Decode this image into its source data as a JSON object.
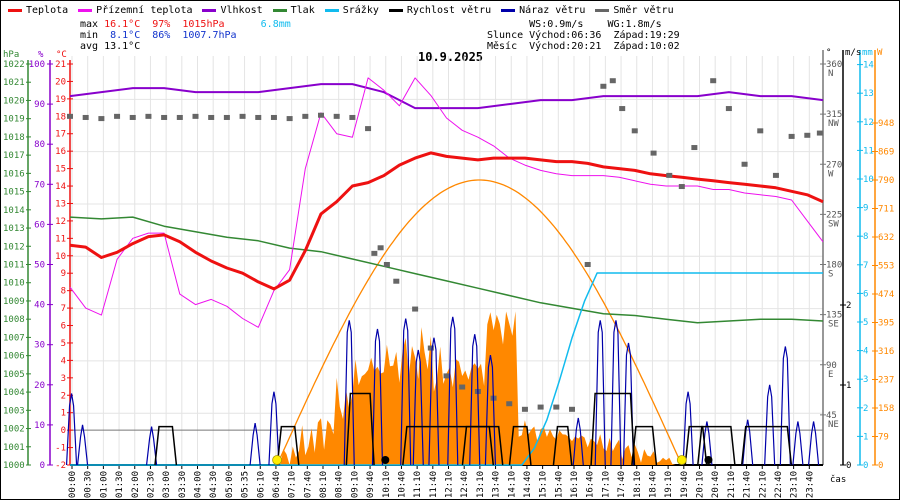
{
  "legend": [
    {
      "label": "Teplota",
      "color": "#ee1111"
    },
    {
      "label": "Přízemní teplota",
      "color": "#ee11ee"
    },
    {
      "label": "Vlhkost",
      "color": "#8800cc"
    },
    {
      "label": "Tlak",
      "color": "#338833"
    },
    {
      "label": "Srážky",
      "color": "#11bbee"
    },
    {
      "label": "Rychlost větru",
      "color": "#000000"
    },
    {
      "label": "Náraz větru",
      "color": "#0000aa"
    },
    {
      "label": "Směr větru",
      "color": "#666666"
    }
  ],
  "stats": {
    "max_label": "max",
    "max_temp": "16.1°C",
    "max_hum": "97%",
    "max_press": "1015hPa",
    "rain": "6.8mm",
    "min_label": "min",
    "min_temp": "8.1°C",
    "min_hum": "86%",
    "min_press": "1007.7hPa",
    "avg_label": "avg",
    "avg_temp": "13.1°C",
    "ws": "WS:0.9m/s",
    "wg": "WG:1.8m/s",
    "sun_label": "Slunce",
    "sun_rise": "Východ:06:36",
    "sun_set": "Západ:19:29",
    "moon_label": "Měsíc",
    "moon_rise": "Východ:20:21",
    "moon_set": "Západ:10:02"
  },
  "chart_data": {
    "type": "line",
    "title": "10.9.2025",
    "xlabel": "čas",
    "x_ticks": [
      "00:00",
      "00:30",
      "01:00",
      "01:30",
      "02:00",
      "02:30",
      "03:00",
      "03:30",
      "04:00",
      "04:30",
      "05:00",
      "05:35",
      "06:10",
      "06:40",
      "07:10",
      "07:40",
      "08:10",
      "08:40",
      "09:10",
      "09:40",
      "10:10",
      "10:40",
      "11:10",
      "11:40",
      "12:10",
      "12:40",
      "13:10",
      "13:40",
      "14:10",
      "14:40",
      "15:10",
      "15:40",
      "16:10",
      "16:40",
      "17:10",
      "17:40",
      "18:10",
      "18:40",
      "19:10",
      "19:40",
      "20:10",
      "20:40",
      "21:10",
      "21:40",
      "22:10",
      "22:40",
      "23:10",
      "23:40"
    ],
    "axes": {
      "pressure": {
        "unit": "hPa",
        "range": [
          1000,
          1022
        ],
        "ticks": [
          1000,
          1001,
          1002,
          1003,
          1004,
          1005,
          1006,
          1007,
          1008,
          1009,
          1010,
          1011,
          1012,
          1013,
          1014,
          1015,
          1016,
          1017,
          1018,
          1019,
          1020,
          1021,
          1022
        ]
      },
      "humidity": {
        "unit": "%",
        "range": [
          0,
          100
        ],
        "ticks": [
          0,
          10,
          20,
          30,
          40,
          50,
          60,
          70,
          80,
          90,
          100
        ]
      },
      "temperature": {
        "unit": "°C",
        "range": [
          -2,
          21
        ],
        "ticks": [
          -2,
          -1,
          0,
          1,
          2,
          3,
          4,
          5,
          6,
          7,
          8,
          9,
          10,
          11,
          12,
          13,
          14,
          15,
          16,
          17,
          18,
          19,
          20,
          21
        ]
      },
      "wind_dir": {
        "unit": "°",
        "ticks": [
          {
            "v": 45,
            "l": "NE"
          },
          {
            "v": 90,
            "l": "E"
          },
          {
            "v": 135,
            "l": "SE"
          },
          {
            "v": 180,
            "l": "S"
          },
          {
            "v": 225,
            "l": "SW"
          },
          {
            "v": 270,
            "l": "W"
          },
          {
            "v": 315,
            "l": "NW"
          },
          {
            "v": 360,
            "l": "N"
          }
        ]
      },
      "wind_speed": {
        "unit": "m/s",
        "ticks": [
          0,
          1,
          2
        ]
      },
      "rain": {
        "unit": "mm",
        "ticks": [
          0,
          1,
          2,
          3,
          4,
          5,
          6,
          7,
          8,
          9,
          10,
          11,
          12,
          13,
          14
        ]
      },
      "solar": {
        "unit": "W",
        "ticks": [
          0,
          79,
          158,
          237,
          316,
          395,
          474,
          553,
          632,
          711,
          790,
          869,
          948
        ]
      }
    },
    "series": [
      {
        "name": "Teplota",
        "unit": "°C",
        "hours": [
          0,
          0.5,
          1,
          1.5,
          2,
          2.5,
          3,
          3.5,
          4,
          4.5,
          5,
          5.5,
          6,
          6.5,
          7,
          7.5,
          8,
          8.5,
          9,
          9.5,
          10,
          10.5,
          11,
          11.5,
          12,
          12.5,
          13,
          13.5,
          14,
          14.5,
          15,
          15.5,
          16,
          16.5,
          17,
          17.5,
          18,
          18.5,
          19,
          19.5,
          20,
          20.5,
          21,
          21.5,
          22,
          22.5,
          23,
          23.5,
          24
        ],
        "values": [
          10.6,
          10.5,
          9.9,
          10.2,
          10.7,
          11.1,
          11.2,
          10.8,
          10.2,
          9.7,
          9.3,
          9.0,
          8.5,
          8.1,
          8.6,
          10.3,
          12.4,
          13.1,
          14.0,
          14.2,
          14.6,
          15.2,
          15.6,
          15.9,
          15.7,
          15.6,
          15.5,
          15.6,
          15.6,
          15.6,
          15.5,
          15.4,
          15.4,
          15.3,
          15.1,
          15.0,
          14.9,
          14.7,
          14.6,
          14.5,
          14.4,
          14.3,
          14.2,
          14.1,
          14.0,
          13.9,
          13.7,
          13.5,
          13.1
        ]
      },
      {
        "name": "Přízemní teplota",
        "unit": "°C",
        "hours": [
          0,
          0.5,
          1,
          1.5,
          2,
          2.5,
          3,
          3.5,
          4,
          4.5,
          5,
          5.5,
          6,
          6.5,
          7,
          7.5,
          8,
          8.5,
          9,
          9.5,
          10,
          10.5,
          11,
          11.5,
          12,
          12.5,
          13,
          13.5,
          14,
          14.5,
          15,
          15.5,
          16,
          16.5,
          17,
          17.5,
          18,
          18.5,
          19,
          19.5,
          20,
          20.5,
          21,
          21.5,
          22,
          22.5,
          23,
          23.5,
          24
        ],
        "values": [
          8.2,
          7.0,
          6.6,
          9.8,
          11.0,
          11.3,
          11.3,
          7.8,
          7.2,
          7.5,
          7.1,
          6.4,
          5.9,
          8.0,
          9.2,
          15.0,
          18.2,
          17.0,
          16.8,
          20.2,
          19.5,
          18.6,
          20.2,
          19.2,
          17.9,
          17.2,
          16.8,
          16.3,
          15.6,
          15.2,
          14.9,
          14.7,
          14.6,
          14.6,
          14.6,
          14.5,
          14.3,
          14.1,
          14.0,
          14.0,
          14.0,
          13.8,
          13.8,
          13.6,
          13.5,
          13.4,
          13.2,
          12.0,
          10.8
        ]
      },
      {
        "name": "Vlhkost",
        "unit": "%",
        "hours": [
          0,
          1,
          2,
          3,
          4,
          5,
          6,
          7,
          8,
          9,
          10,
          11,
          12,
          13,
          14,
          15,
          16,
          17,
          18,
          19,
          20,
          21,
          22,
          23,
          24
        ],
        "values": [
          92,
          93,
          94,
          94,
          93,
          93,
          93,
          94,
          95,
          95,
          93,
          89,
          89,
          89,
          90,
          91,
          91,
          92,
          92,
          92,
          92,
          93,
          92,
          92,
          91
        ]
      },
      {
        "name": "Tlak",
        "unit": "hPa",
        "hours": [
          0,
          1,
          2,
          3,
          4,
          5,
          6,
          7,
          8,
          9,
          10,
          11,
          12,
          13,
          14,
          15,
          16,
          17,
          18,
          19,
          20,
          21,
          22,
          23,
          24
        ],
        "values": [
          1013.6,
          1013.5,
          1013.6,
          1013.1,
          1012.8,
          1012.5,
          1012.3,
          1011.9,
          1011.7,
          1011.3,
          1010.9,
          1010.5,
          1010.1,
          1009.7,
          1009.3,
          1008.9,
          1008.6,
          1008.3,
          1008.2,
          1008.0,
          1007.8,
          1007.9,
          1008.0,
          1008.0,
          1007.9
        ]
      },
      {
        "name": "Srážky",
        "unit": "mm",
        "hours": [
          0,
          14.4,
          14.8,
          15.2,
          15.6,
          16.0,
          16.4,
          16.8,
          24
        ],
        "values": [
          0,
          0,
          0.6,
          1.6,
          3.0,
          4.5,
          5.8,
          6.8,
          6.8
        ]
      },
      {
        "name": "Rychlost větru",
        "unit": "m/s",
        "values_note": "mostly 0, bursts up to ~1.5 m/s"
      },
      {
        "name": "Náraz větru",
        "unit": "m/s",
        "values_note": "gusts up to ~2.5 m/s"
      },
      {
        "name": "Směr větru",
        "unit": "°"
      },
      {
        "name": "Solar",
        "unit": "W",
        "peak": 790
      }
    ]
  }
}
